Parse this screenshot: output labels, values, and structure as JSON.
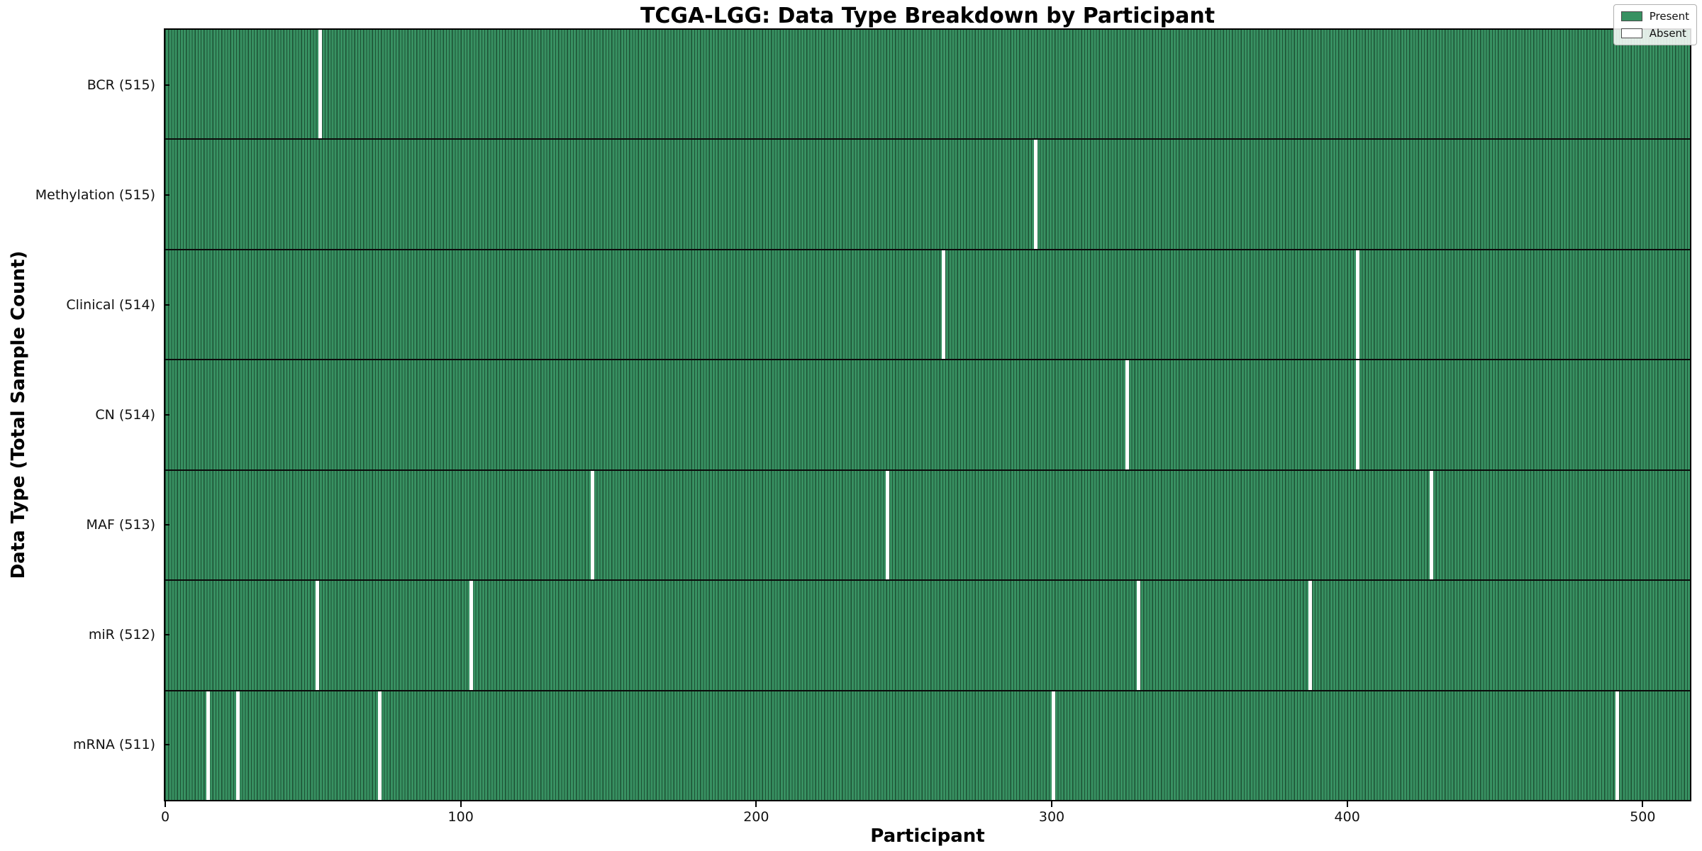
{
  "chart_data": {
    "type": "heatmap",
    "title": "TCGA-LGG: Data Type Breakdown by Participant",
    "xlabel": "Participant",
    "ylabel": "Data Type (Total Sample Count)",
    "x_ticks": [
      0,
      100,
      200,
      300,
      400,
      500
    ],
    "x_range": [
      0,
      516
    ],
    "grid": false,
    "legend": {
      "position": "upper right",
      "entries": [
        {
          "label": "Present",
          "color": "#389162"
        },
        {
          "label": "Absent",
          "color": "#ffffff"
        }
      ]
    },
    "rows": [
      {
        "name": "BCR",
        "label": "BCR (515)",
        "total": 515,
        "absent_participants": [
          52
        ]
      },
      {
        "name": "Methylation",
        "label": "Methylation (515)",
        "total": 515,
        "absent_participants": [
          294
        ]
      },
      {
        "name": "Clinical",
        "label": "Clinical (514)",
        "total": 514,
        "absent_participants": [
          263,
          403
        ]
      },
      {
        "name": "CN",
        "label": "CN (514)",
        "total": 514,
        "absent_participants": [
          325,
          403
        ]
      },
      {
        "name": "MAF",
        "label": "MAF (513)",
        "total": 513,
        "absent_participants": [
          144,
          244,
          428
        ]
      },
      {
        "name": "miR",
        "label": "miR (512)",
        "total": 512,
        "absent_participants": [
          51,
          103,
          329,
          387
        ]
      },
      {
        "name": "mRNA",
        "label": "mRNA (511)",
        "total": 511,
        "absent_participants": [
          14,
          24,
          72,
          300,
          491
        ]
      }
    ],
    "colors": {
      "present_fill": "#389162",
      "bar_edge": "#1d5134",
      "absent": "#ffffff"
    }
  }
}
